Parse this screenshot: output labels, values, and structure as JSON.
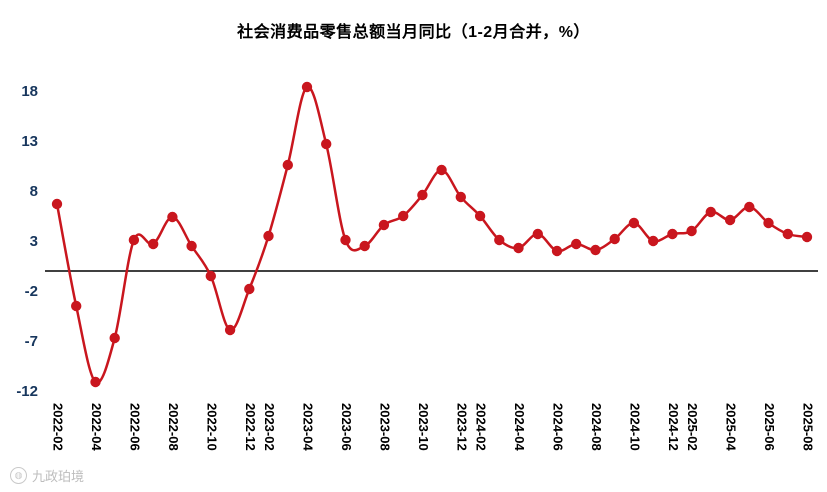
{
  "watermark": {
    "icon": "◍",
    "text": "九政珀境"
  },
  "chart_data": {
    "type": "line",
    "title": "社会消费品零售总额当月同比（1-2月合并，%）",
    "xlabel": "",
    "ylabel": "",
    "legend": "none",
    "grid": false,
    "smoothed": true,
    "marker": "circle",
    "zero_axis_line": true,
    "y_ticks": [
      18,
      13,
      8,
      3,
      -2,
      -7,
      -12
    ],
    "ylim": [
      -13,
      19.5
    ],
    "colors": {
      "line": "#C9161E",
      "marker": "#C9161E",
      "axis": "#000000",
      "y_tick_color": "#17365D",
      "x_tick_color": "#000000"
    },
    "x_tick_labels": [
      "2022-02",
      "2022-04",
      "2022-06",
      "2022-08",
      "2022-10",
      "2022-12",
      "2023-02",
      "2023-04",
      "2023-06",
      "2023-08",
      "2023-10",
      "2023-12",
      "2024-02",
      "2024-04",
      "2024-06",
      "2024-08",
      "2024-10",
      "2024-12",
      "2025-02",
      "2025-04",
      "2025-06",
      "2025-08"
    ],
    "series": [
      {
        "name": "社会消费品零售总额当月同比",
        "x": [
          "2022-02",
          "2022-03",
          "2022-04",
          "2022-05",
          "2022-06",
          "2022-07",
          "2022-08",
          "2022-09",
          "2022-10",
          "2022-11",
          "2022-12",
          "2023-02",
          "2023-03",
          "2023-04",
          "2023-05",
          "2023-06",
          "2023-07",
          "2023-08",
          "2023-09",
          "2023-10",
          "2023-11",
          "2023-12",
          "2024-02",
          "2024-03",
          "2024-04",
          "2024-05",
          "2024-06",
          "2024-07",
          "2024-08",
          "2024-09",
          "2024-10",
          "2024-11",
          "2024-12",
          "2025-02",
          "2025-03",
          "2025-04",
          "2025-05",
          "2025-06",
          "2025-07",
          "2025-08"
        ],
        "values": [
          6.7,
          -3.5,
          -11.1,
          -6.7,
          3.1,
          2.7,
          5.4,
          2.5,
          -0.5,
          -5.9,
          -1.8,
          3.5,
          10.6,
          18.4,
          12.7,
          3.1,
          2.5,
          4.6,
          5.5,
          7.6,
          10.1,
          7.4,
          5.5,
          3.1,
          2.3,
          3.7,
          2.0,
          2.7,
          2.1,
          3.2,
          4.8,
          3.0,
          3.7,
          4.0,
          5.9,
          5.1,
          6.4,
          4.8,
          3.7,
          3.4
        ]
      }
    ]
  }
}
